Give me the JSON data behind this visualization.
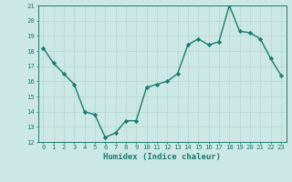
{
  "x": [
    0,
    1,
    2,
    3,
    4,
    5,
    6,
    7,
    8,
    9,
    10,
    11,
    12,
    13,
    14,
    15,
    16,
    17,
    18,
    19,
    20,
    21,
    22,
    23
  ],
  "y": [
    18.2,
    17.2,
    16.5,
    15.8,
    14.0,
    13.8,
    12.3,
    12.6,
    13.4,
    13.4,
    15.6,
    15.8,
    16.0,
    16.5,
    18.4,
    18.8,
    18.4,
    18.6,
    21.0,
    19.3,
    19.2,
    18.8,
    17.5,
    16.4
  ],
  "xlabel": "Humidex (Indice chaleur)",
  "ylim": [
    12,
    21
  ],
  "xlim": [
    -0.5,
    23.5
  ],
  "yticks": [
    12,
    13,
    14,
    15,
    16,
    17,
    18,
    19,
    20,
    21
  ],
  "xticks": [
    0,
    1,
    2,
    3,
    4,
    5,
    6,
    7,
    8,
    9,
    10,
    11,
    12,
    13,
    14,
    15,
    16,
    17,
    18,
    19,
    20,
    21,
    22,
    23
  ],
  "line_color": "#1a7a6e",
  "bg_color": "#cce8e4",
  "grid_color": "#b8d8d4",
  "tick_color": "#1a7a6e",
  "label_color": "#1a7a6e",
  "marker": "D",
  "marker_size": 2.2,
  "line_width": 1.0,
  "xlabel_fontsize": 6.5,
  "tick_fontsize": 5.2
}
